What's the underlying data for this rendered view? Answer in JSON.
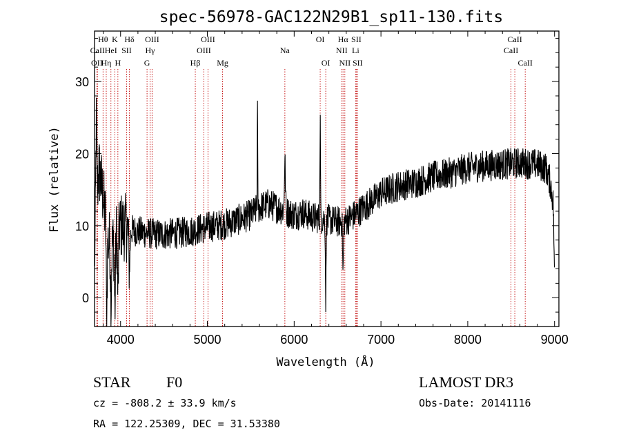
{
  "chart_data": {
    "type": "line",
    "title": "spec-56978-GAC122N29B1_sp11-130.fits",
    "xlabel": "Wavelength (Å)",
    "ylabel": "Flux (relative)",
    "xlim": [
      3700,
      9050
    ],
    "ylim": [
      -4,
      37
    ],
    "x_ticks": [
      4000,
      5000,
      6000,
      7000,
      8000,
      9000
    ],
    "y_ticks": [
      0,
      10,
      20,
      30
    ],
    "x_tick_labels": [
      "4000",
      "5000",
      "6000",
      "7000",
      "8000",
      "9000"
    ],
    "y_tick_labels": [
      "0",
      "10",
      "20",
      "30"
    ],
    "line_color": "#000000",
    "marker_color": "#c00000",
    "spectral_lines": [
      {
        "label": "Hθ",
        "wavelength": 3798,
        "row": 0
      },
      {
        "label": "CaII",
        "wavelength": 3734,
        "row": 1
      },
      {
        "label": "OII",
        "wavelength": 3727,
        "row": 2
      },
      {
        "label": "Hη",
        "wavelength": 3835,
        "row": 2
      },
      {
        "label": "K",
        "wavelength": 3934,
        "row": 0
      },
      {
        "label": "HeI",
        "wavelength": 3889,
        "row": 1
      },
      {
        "label": "SII",
        "wavelength": 4069,
        "row": 1
      },
      {
        "label": "H",
        "wavelength": 3969,
        "row": 2
      },
      {
        "label": "Hδ",
        "wavelength": 4102,
        "row": 0
      },
      {
        "label": "OIII",
        "wavelength": 4363,
        "row": 0
      },
      {
        "label": "Hγ",
        "wavelength": 4340,
        "row": 1
      },
      {
        "label": "G",
        "wavelength": 4305,
        "row": 2
      },
      {
        "label": "Hβ",
        "wavelength": 4861,
        "row": 2
      },
      {
        "label": "OIII",
        "wavelength": 5007,
        "row": 0
      },
      {
        "label": "OIII",
        "wavelength": 4959,
        "row": 1
      },
      {
        "label": "Mg",
        "wavelength": 5175,
        "row": 2
      },
      {
        "label": "Na",
        "wavelength": 5893,
        "row": 1
      },
      {
        "label": "OI",
        "wavelength": 6300,
        "row": 0
      },
      {
        "label": "OI",
        "wavelength": 6364,
        "row": 2
      },
      {
        "label": "Hα",
        "wavelength": 6563,
        "row": 0
      },
      {
        "label": "SII",
        "wavelength": 6716,
        "row": 0
      },
      {
        "label": "NII",
        "wavelength": 6548,
        "row": 1
      },
      {
        "label": "Li",
        "wavelength": 6708,
        "row": 1
      },
      {
        "label": "NII",
        "wavelength": 6584,
        "row": 2
      },
      {
        "label": "SII",
        "wavelength": 6731,
        "row": 2
      },
      {
        "label": "CaII",
        "wavelength": 8542,
        "row": 0
      },
      {
        "label": "CaII",
        "wavelength": 8498,
        "row": 1
      },
      {
        "label": "CaII",
        "wavelength": 8662,
        "row": 2
      }
    ],
    "spectrum_anchors": {
      "x": [
        3700,
        3720,
        3750,
        3800,
        3850,
        3900,
        3950,
        4000,
        4100,
        4200,
        4300,
        4400,
        4500,
        4600,
        4700,
        4800,
        4900,
        5000,
        5100,
        5200,
        5300,
        5400,
        5500,
        5550,
        5600,
        5700,
        5800,
        5900,
        6000,
        6100,
        6200,
        6300,
        6400,
        6500,
        6600,
        6700,
        6800,
        6900,
        7000,
        7200,
        7400,
        7600,
        7800,
        8000,
        8200,
        8400,
        8600,
        8800,
        8900,
        8950,
        9000
      ],
      "y": [
        5,
        12,
        18,
        14,
        8,
        7,
        9,
        10,
        9.5,
        9.2,
        9,
        8.8,
        8.8,
        8.9,
        9,
        9.2,
        9.5,
        9.8,
        10,
        10.2,
        10.6,
        11,
        11.5,
        12,
        12.5,
        13,
        12.5,
        12,
        11.5,
        11.8,
        11.2,
        11,
        10.8,
        10.5,
        10.7,
        11.5,
        12.5,
        13.5,
        14.5,
        15.5,
        16,
        16.8,
        17.3,
        18,
        18.3,
        18.5,
        18.7,
        18.5,
        18,
        16,
        12
      ]
    },
    "spectrum_features": [
      {
        "wavelength": 3720,
        "amplitude": 12,
        "sigma": 6
      },
      {
        "wavelength": 3840,
        "amplitude": -12,
        "sigma": 5
      },
      {
        "wavelength": 3890,
        "amplitude": -8,
        "sigma": 5
      },
      {
        "wavelength": 3935,
        "amplitude": -10,
        "sigma": 6
      },
      {
        "wavelength": 3970,
        "amplitude": -9,
        "sigma": 6
      },
      {
        "wavelength": 4102,
        "amplitude": -5,
        "sigma": 8
      },
      {
        "wavelength": 5577,
        "amplitude": 14,
        "sigma": 3
      },
      {
        "wavelength": 5893,
        "amplitude": 7,
        "sigma": 6
      },
      {
        "wavelength": 6300,
        "amplitude": 14,
        "sigma": 3
      },
      {
        "wavelength": 6364,
        "amplitude": -11,
        "sigma": 4
      },
      {
        "wavelength": 6563,
        "amplitude": -7,
        "sigma": 5
      },
      {
        "wavelength": 9000,
        "amplitude": -10,
        "sigma": 6
      }
    ],
    "noise_amplitude": 2.2
  },
  "info": {
    "object_class": "STAR",
    "subclass": "F0",
    "survey": "LAMOST DR3",
    "redshift": "cz = -808.2 ± 33.9 km/s",
    "obs_date": "Obs-Date: 20141116",
    "coords": "RA = 122.25309, DEC =  31.53380"
  }
}
